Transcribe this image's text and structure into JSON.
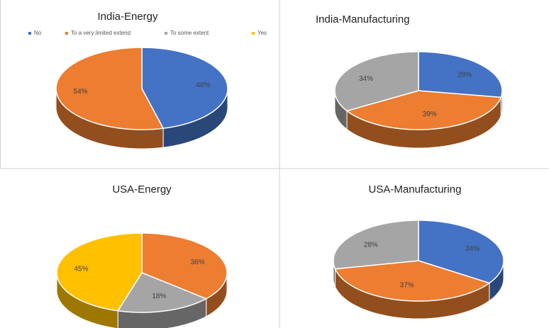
{
  "chart_data": [
    {
      "type": "pie",
      "title": "India-Energy",
      "values": [
        46,
        54
      ],
      "value_labels": [
        "46%",
        "54%"
      ],
      "colors": [
        "#4472c4",
        "#ed7d31"
      ],
      "legend": [
        "No",
        "To a very limited extend",
        "To some extent",
        "Yes"
      ],
      "legend_colors": [
        "#4472c4",
        "#ed7d31",
        "#a5a5a5",
        "#ffc000"
      ]
    },
    {
      "type": "pie",
      "title": "India-Manufacturing",
      "values": [
        28,
        39,
        34
      ],
      "value_labels": [
        "28%",
        "39%",
        "34%"
      ],
      "colors": [
        "#4472c4",
        "#ed7d31",
        "#a5a5a5"
      ]
    },
    {
      "type": "pie",
      "title": "USA-Energy",
      "values": [
        36,
        18,
        45
      ],
      "value_labels": [
        "36%",
        "18%",
        "45%"
      ],
      "colors": [
        "#ed7d31",
        "#a5a5a5",
        "#ffc000"
      ]
    },
    {
      "type": "pie",
      "title": "USA-Manufacturing",
      "values": [
        34,
        37,
        28
      ],
      "value_labels": [
        "34%",
        "37%",
        "28%"
      ],
      "colors": [
        "#4472c4",
        "#ed7d31",
        "#a5a5a5"
      ]
    }
  ]
}
